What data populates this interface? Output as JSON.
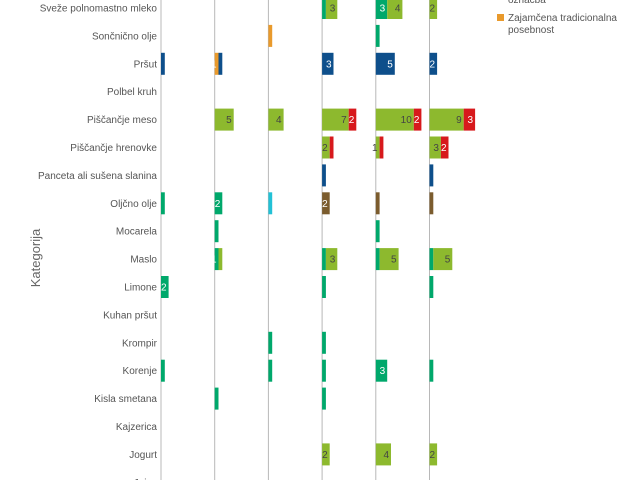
{
  "chart_data": {
    "type": "bar",
    "orientation": "horizontal",
    "stacked": true,
    "faceted": true,
    "ylabel": "Kategorija",
    "categories": [
      "Sveže polnomastno mleko",
      "Sončnično olje",
      "Pršut",
      "Polbel kruh",
      "Piščančje meso",
      "Piščančje hrenovke",
      "Panceta ali sušena slanina",
      "Oljčno olje",
      "Mocarela",
      "Maslo",
      "Limone",
      "Kuhan pršut",
      "Krompir",
      "Korenje",
      "Kisla smetana",
      "Kajzerica",
      "Jogurt",
      "Jajca"
    ],
    "legend": {
      "placement": "top-right",
      "entries": [
        {
          "name": "označba",
          "color": "#8db92e"
        },
        {
          "name": "Zajamčena tradicionalna posebnost",
          "color": "#e99a2c"
        }
      ]
    },
    "colors": {
      "green": "#8db92e",
      "teal": "#00a86b",
      "blue": "#0e4f8b",
      "red": "#d7191c",
      "orange": "#e99a2c",
      "cyan": "#22c1d6",
      "brown": "#7b5c2e"
    },
    "facets": [
      {
        "segments": [
          {
            "category": "Pršut",
            "value": 1,
            "color": "#0e4f8b"
          },
          {
            "category": "Oljčno olje",
            "value": 1,
            "color": "#00a86b"
          },
          {
            "category": "Limone",
            "value": 2,
            "color": "#00a86b",
            "label": "2"
          },
          {
            "category": "Korenje",
            "value": 1,
            "color": "#00a86b"
          }
        ]
      },
      {
        "segments": [
          {
            "category": "Pršut",
            "value": 1,
            "color": "#e99a2c",
            "label": "1"
          },
          {
            "category": "Pršut",
            "value": 1,
            "color": "#0e4f8b"
          },
          {
            "category": "Piščančje meso",
            "value": 5,
            "color": "#8db92e",
            "label": "5"
          },
          {
            "category": "Oljčno olje",
            "value": 2,
            "color": "#00a86b",
            "label": "2"
          },
          {
            "category": "Mocarela",
            "value": 1,
            "color": "#00a86b"
          },
          {
            "category": "Maslo",
            "value": 1,
            "color": "#00a86b",
            "label": "1"
          },
          {
            "category": "Maslo",
            "value": 1,
            "color": "#8db92e"
          },
          {
            "category": "Kisla smetana",
            "value": 1,
            "color": "#00a86b"
          }
        ]
      },
      {
        "segments": [
          {
            "category": "Sončnično olje",
            "value": 1,
            "color": "#e99a2c"
          },
          {
            "category": "Piščančje meso",
            "value": 4,
            "color": "#8db92e",
            "label": "4"
          },
          {
            "category": "Oljčno olje",
            "value": 1,
            "color": "#22c1d6"
          },
          {
            "category": "Krompir",
            "value": 1,
            "color": "#00a86b"
          },
          {
            "category": "Korenje",
            "value": 1,
            "color": "#00a86b"
          }
        ]
      },
      {
        "segments": [
          {
            "category": "Sveže polnomastno mleko",
            "value": 1,
            "color": "#00a86b"
          },
          {
            "category": "Sveže polnomastno mleko",
            "value": 3,
            "color": "#8db92e",
            "label": "3"
          },
          {
            "category": "Pršut",
            "value": 3,
            "color": "#0e4f8b",
            "label": "3"
          },
          {
            "category": "Piščančje meso",
            "value": 7,
            "color": "#8db92e",
            "label": "7"
          },
          {
            "category": "Piščančje meso",
            "value": 2,
            "color": "#d7191c",
            "label": "2"
          },
          {
            "category": "Piščančje hrenovke",
            "value": 2,
            "color": "#8db92e",
            "label": "2"
          },
          {
            "category": "Piščančje hrenovke",
            "value": 1,
            "color": "#d7191c"
          },
          {
            "category": "Panceta ali sušena slanina",
            "value": 1,
            "color": "#0e4f8b"
          },
          {
            "category": "Oljčno olje",
            "value": 2,
            "color": "#7b5c2e",
            "label": "2"
          },
          {
            "category": "Maslo",
            "value": 1,
            "color": "#00a86b"
          },
          {
            "category": "Maslo",
            "value": 3,
            "color": "#8db92e",
            "label": "3"
          },
          {
            "category": "Limone",
            "value": 1,
            "color": "#00a86b"
          },
          {
            "category": "Krompir",
            "value": 1,
            "color": "#00a86b"
          },
          {
            "category": "Korenje",
            "value": 1,
            "color": "#00a86b"
          },
          {
            "category": "Kisla smetana",
            "value": 1,
            "color": "#00a86b"
          },
          {
            "category": "Jogurt",
            "value": 2,
            "color": "#8db92e",
            "label": "2"
          }
        ]
      },
      {
        "segments": [
          {
            "category": "Sveže polnomastno mleko",
            "value": 3,
            "color": "#00a86b",
            "label": "3"
          },
          {
            "category": "Sveže polnomastno mleko",
            "value": 4,
            "color": "#8db92e",
            "label": "4"
          },
          {
            "category": "Sončnično olje",
            "value": 1,
            "color": "#00a86b"
          },
          {
            "category": "Pršut",
            "value": 5,
            "color": "#0e4f8b",
            "label": "5"
          },
          {
            "category": "Piščančje meso",
            "value": 10,
            "color": "#8db92e",
            "label": "10"
          },
          {
            "category": "Piščančje meso",
            "value": 2,
            "color": "#d7191c",
            "label": "2"
          },
          {
            "category": "Piščančje hrenovke",
            "value": 1,
            "color": "#8db92e",
            "label": "1"
          },
          {
            "category": "Piščančje hrenovke",
            "value": 1,
            "color": "#d7191c"
          },
          {
            "category": "Oljčno olje",
            "value": 1,
            "color": "#7b5c2e"
          },
          {
            "category": "Mocarela",
            "value": 1,
            "color": "#00a86b"
          },
          {
            "category": "Maslo",
            "value": 1,
            "color": "#00a86b"
          },
          {
            "category": "Maslo",
            "value": 5,
            "color": "#8db92e",
            "label": "5"
          },
          {
            "category": "Korenje",
            "value": 3,
            "color": "#00a86b",
            "label": "3"
          },
          {
            "category": "Jogurt",
            "value": 4,
            "color": "#8db92e",
            "label": "4"
          }
        ]
      },
      {
        "segments": [
          {
            "category": "Sveže polnomastno mleko",
            "value": 2,
            "color": "#8db92e",
            "label": "2"
          },
          {
            "category": "Pršut",
            "value": 2,
            "color": "#0e4f8b",
            "label": "2"
          },
          {
            "category": "Piščančje meso",
            "value": 9,
            "color": "#8db92e",
            "label": "9"
          },
          {
            "category": "Piščančje meso",
            "value": 3,
            "color": "#d7191c",
            "label": "3"
          },
          {
            "category": "Piščančje hrenovke",
            "value": 3,
            "color": "#8db92e",
            "label": "3"
          },
          {
            "category": "Piščančje hrenovke",
            "value": 2,
            "color": "#d7191c",
            "label": "2"
          },
          {
            "category": "Panceta ali sušena slanina",
            "value": 1,
            "color": "#0e4f8b"
          },
          {
            "category": "Oljčno olje",
            "value": 1,
            "color": "#7b5c2e"
          },
          {
            "category": "Maslo",
            "value": 1,
            "color": "#00a86b"
          },
          {
            "category": "Maslo",
            "value": 5,
            "color": "#8db92e",
            "label": "5"
          },
          {
            "category": "Limone",
            "value": 1,
            "color": "#00a86b"
          },
          {
            "category": "Korenje",
            "value": 1,
            "color": "#00a86b"
          },
          {
            "category": "Jogurt",
            "value": 2,
            "color": "#8db92e",
            "label": "2"
          }
        ]
      }
    ]
  }
}
